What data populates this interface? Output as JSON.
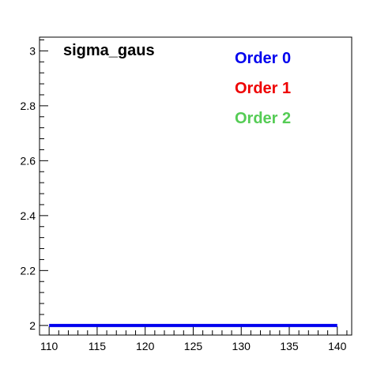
{
  "chart_data": {
    "type": "line",
    "title": "sigma_gaus",
    "xlabel": "",
    "ylabel": "",
    "xlim": [
      109,
      141.5
    ],
    "ylim": [
      1.965,
      3.05
    ],
    "x_ticks": [
      110,
      115,
      120,
      125,
      130,
      135,
      140
    ],
    "y_ticks": [
      2,
      2.2,
      2.4,
      2.6,
      2.8,
      3
    ],
    "y_tick_labels": [
      "2",
      "2.2",
      "2.4",
      "2.6",
      "2.8",
      "3"
    ],
    "grid": false,
    "legend_position": "top-right",
    "series": [
      {
        "name": "Order 0",
        "color": "#0000ee",
        "x": [
          110,
          140
        ],
        "y": [
          2,
          2
        ]
      },
      {
        "name": "Order 1",
        "color": "#ee0000",
        "x": [],
        "y": []
      },
      {
        "name": "Order 2",
        "color": "#55cc55",
        "x": [],
        "y": []
      }
    ]
  }
}
